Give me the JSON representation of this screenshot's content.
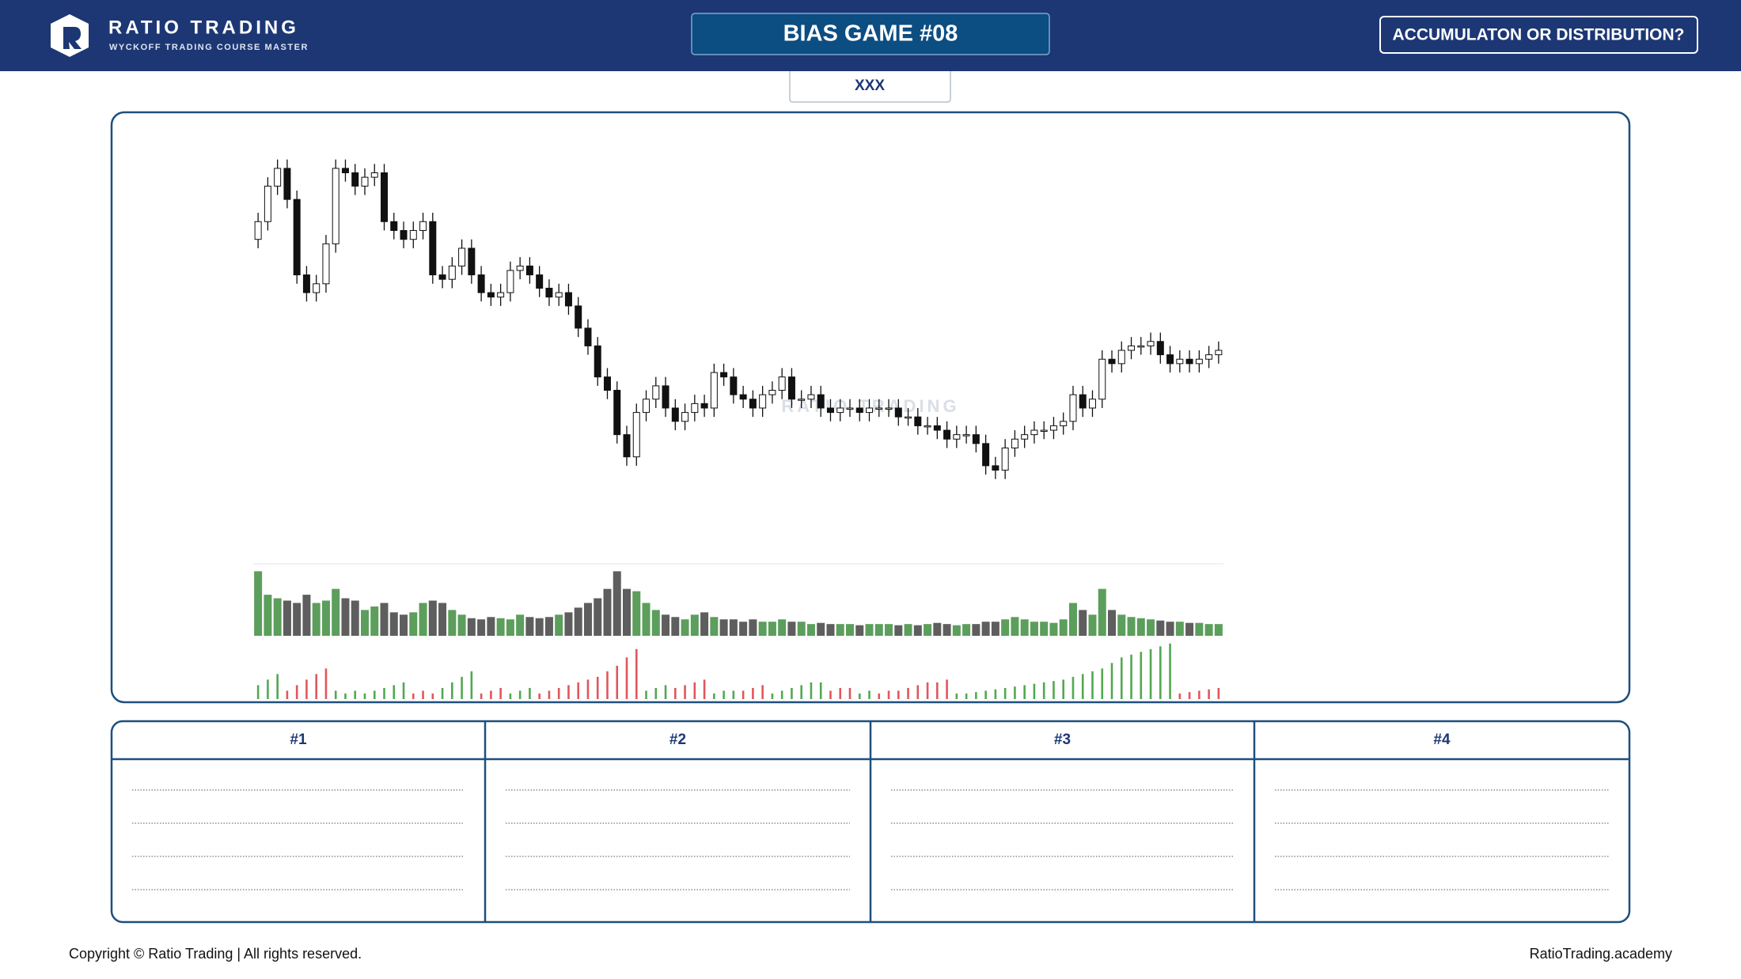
{
  "header": {
    "brand": "RATIO TRADING",
    "tagline": "WYCKOFF TRADING COURSE MASTER",
    "game_title": "BIAS GAME #08",
    "question": "ACCUMULATON OR DISTRIBUTION?"
  },
  "tab_label": "XXX",
  "chart_data": {
    "type": "candlestick",
    "watermark": "RATIO TRADING",
    "ylim": [
      60,
      140
    ],
    "candles": [
      [
        116,
        122,
        114,
        120
      ],
      [
        120,
        130,
        118,
        128
      ],
      [
        128,
        134,
        126,
        132
      ],
      [
        132,
        134,
        123,
        125
      ],
      [
        125,
        127,
        106,
        108
      ],
      [
        108,
        110,
        102,
        104
      ],
      [
        104,
        108,
        102,
        106
      ],
      [
        106,
        117,
        104,
        115
      ],
      [
        115,
        134,
        113,
        132
      ],
      [
        132,
        134,
        129,
        131
      ],
      [
        131,
        133,
        126,
        128
      ],
      [
        128,
        132,
        126,
        130
      ],
      [
        130,
        133,
        128,
        131
      ],
      [
        131,
        133,
        118,
        120
      ],
      [
        120,
        122,
        116,
        118
      ],
      [
        118,
        120,
        114,
        116
      ],
      [
        116,
        120,
        114,
        118
      ],
      [
        118,
        122,
        116,
        120
      ],
      [
        120,
        122,
        106,
        108
      ],
      [
        108,
        110,
        105,
        107
      ],
      [
        107,
        112,
        105,
        110
      ],
      [
        110,
        116,
        108,
        114
      ],
      [
        114,
        116,
        106,
        108
      ],
      [
        108,
        110,
        102,
        104
      ],
      [
        104,
        106,
        101,
        103
      ],
      [
        103,
        106,
        101,
        104
      ],
      [
        104,
        111,
        102,
        109
      ],
      [
        109,
        112,
        107,
        110
      ],
      [
        110,
        112,
        106,
        108
      ],
      [
        108,
        110,
        103,
        105
      ],
      [
        105,
        107,
        101,
        103
      ],
      [
        103,
        106,
        101,
        104
      ],
      [
        104,
        106,
        99,
        101
      ],
      [
        101,
        103,
        94,
        96
      ],
      [
        96,
        98,
        90,
        92
      ],
      [
        92,
        94,
        83,
        85
      ],
      [
        85,
        87,
        80,
        82
      ],
      [
        82,
        84,
        70,
        72
      ],
      [
        72,
        74,
        65,
        67
      ],
      [
        67,
        79,
        65,
        77
      ],
      [
        77,
        82,
        75,
        80
      ],
      [
        80,
        85,
        78,
        83
      ],
      [
        83,
        85,
        76,
        78
      ],
      [
        78,
        80,
        73,
        75
      ],
      [
        75,
        79,
        73,
        77
      ],
      [
        77,
        81,
        75,
        79
      ],
      [
        79,
        81,
        76,
        78
      ],
      [
        78,
        88,
        76,
        86
      ],
      [
        86,
        88,
        83,
        85
      ],
      [
        85,
        87,
        79,
        81
      ],
      [
        81,
        83,
        78,
        80
      ],
      [
        80,
        82,
        76,
        78
      ],
      [
        78,
        83,
        76,
        81
      ],
      [
        81,
        84,
        79,
        82
      ],
      [
        82,
        87,
        80,
        85
      ],
      [
        85,
        87,
        78,
        80
      ],
      [
        80,
        82,
        78,
        80
      ],
      [
        80,
        83,
        78,
        81
      ],
      [
        81,
        83,
        76,
        78
      ],
      [
        78,
        80,
        75,
        77
      ],
      [
        77,
        80,
        75,
        78
      ],
      [
        78,
        80,
        76,
        78
      ],
      [
        78,
        80,
        75,
        77
      ],
      [
        77,
        80,
        75,
        78
      ],
      [
        78,
        80,
        76,
        78
      ],
      [
        78,
        80,
        76,
        78
      ],
      [
        78,
        80,
        74,
        76
      ],
      [
        76,
        78,
        74,
        76
      ],
      [
        76,
        78,
        72,
        74
      ],
      [
        74,
        76,
        72,
        74
      ],
      [
        74,
        76,
        71,
        73
      ],
      [
        73,
        75,
        69,
        71
      ],
      [
        71,
        74,
        69,
        72
      ],
      [
        72,
        74,
        70,
        72
      ],
      [
        72,
        74,
        68,
        70
      ],
      [
        70,
        72,
        63,
        65
      ],
      [
        65,
        67,
        62,
        64
      ],
      [
        64,
        71,
        62,
        69
      ],
      [
        69,
        73,
        67,
        71
      ],
      [
        71,
        74,
        69,
        72
      ],
      [
        72,
        75,
        70,
        73
      ],
      [
        73,
        75,
        71,
        73
      ],
      [
        73,
        76,
        71,
        74
      ],
      [
        74,
        77,
        72,
        75
      ],
      [
        75,
        83,
        73,
        81
      ],
      [
        81,
        83,
        76,
        78
      ],
      [
        78,
        82,
        76,
        80
      ],
      [
        80,
        91,
        78,
        89
      ],
      [
        89,
        91,
        86,
        88
      ],
      [
        88,
        93,
        86,
        91
      ],
      [
        91,
        94,
        89,
        92
      ],
      [
        92,
        94,
        90,
        92
      ],
      [
        92,
        95,
        90,
        93
      ],
      [
        93,
        95,
        88,
        90
      ],
      [
        90,
        92,
        86,
        88
      ],
      [
        88,
        91,
        86,
        89
      ],
      [
        89,
        91,
        86,
        88
      ],
      [
        88,
        91,
        86,
        89
      ],
      [
        89,
        92,
        87,
        90
      ],
      [
        90,
        93,
        88,
        91
      ]
    ],
    "up_color": "#ffffff",
    "down_color": "#111111",
    "volume": {
      "ylim": [
        0,
        60
      ],
      "up_color": "#5c9e5c",
      "down_color": "#5e5e5e",
      "values": [
        55,
        35,
        32,
        30,
        28,
        35,
        28,
        30,
        40,
        32,
        30,
        22,
        25,
        28,
        20,
        18,
        20,
        28,
        30,
        28,
        22,
        18,
        15,
        14,
        16,
        15,
        14,
        18,
        16,
        15,
        16,
        18,
        20,
        24,
        28,
        32,
        40,
        55,
        40,
        38,
        28,
        22,
        18,
        16,
        14,
        18,
        20,
        16,
        14,
        14,
        12,
        14,
        12,
        12,
        14,
        12,
        12,
        10,
        11,
        10,
        10,
        10,
        9,
        10,
        10,
        10,
        9,
        10,
        9,
        10,
        11,
        10,
        9,
        10,
        10,
        12,
        12,
        14,
        16,
        14,
        12,
        12,
        11,
        14,
        28,
        22,
        18,
        40,
        22,
        18,
        16,
        15,
        14,
        13,
        12,
        12,
        11,
        11,
        10,
        10
      ]
    },
    "indicator": {
      "ylim": [
        0,
        45
      ],
      "series": [
        {
          "color": "#52a852",
          "values": [
            10,
            14,
            18,
            null,
            null,
            null,
            null,
            null,
            6,
            4,
            6,
            4,
            6,
            8,
            10,
            12,
            null,
            null,
            null,
            8,
            12,
            16,
            20,
            null,
            null,
            null,
            4,
            6,
            8,
            null,
            null,
            null,
            null,
            null,
            null,
            null,
            null,
            null,
            null,
            null,
            6,
            8,
            10,
            null,
            null,
            null,
            null,
            4,
            6,
            6,
            null,
            null,
            null,
            4,
            6,
            8,
            10,
            12,
            12,
            null,
            null,
            null,
            4,
            6,
            null,
            null,
            null,
            null,
            null,
            null,
            null,
            null,
            4,
            4,
            5,
            6,
            7,
            8,
            9,
            10,
            11,
            12,
            13,
            14,
            16,
            18,
            20,
            22,
            26,
            30,
            32,
            34,
            36,
            38,
            40,
            null,
            null,
            null,
            null,
            null
          ]
        },
        {
          "color": "#e0575b",
          "values": [
            null,
            null,
            null,
            6,
            10,
            14,
            18,
            22,
            null,
            null,
            null,
            null,
            null,
            null,
            null,
            null,
            4,
            6,
            4,
            null,
            null,
            null,
            null,
            4,
            6,
            8,
            null,
            null,
            null,
            4,
            6,
            8,
            10,
            12,
            14,
            16,
            20,
            24,
            30,
            36,
            null,
            null,
            null,
            8,
            10,
            12,
            14,
            null,
            null,
            null,
            6,
            8,
            10,
            null,
            null,
            null,
            null,
            null,
            null,
            6,
            8,
            8,
            null,
            null,
            4,
            6,
            6,
            8,
            10,
            12,
            12,
            14,
            null,
            null,
            null,
            null,
            null,
            null,
            null,
            null,
            null,
            null,
            null,
            null,
            null,
            null,
            null,
            null,
            null,
            null,
            null,
            null,
            null,
            null,
            null,
            4,
            5,
            6,
            7,
            8
          ]
        }
      ]
    }
  },
  "table": {
    "columns": [
      "#1",
      "#2",
      "#3",
      "#4"
    ]
  },
  "footer": {
    "copyright": "Copyright © Ratio Trading | All rights reserved.",
    "website": "RatioTrading.academy"
  }
}
